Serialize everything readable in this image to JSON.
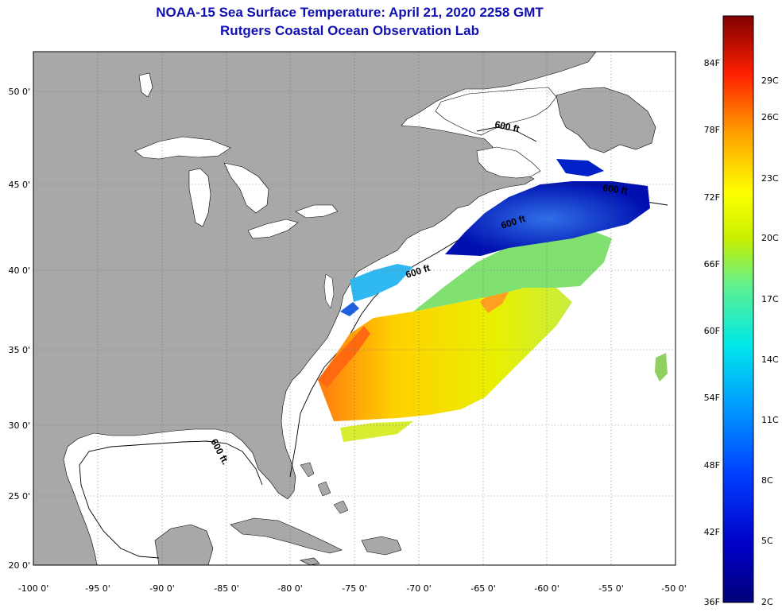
{
  "header": {
    "title": "NOAA-15 Sea Surface Temperature:  April 21, 2020 2258 GMT",
    "subtitle": "Rutgers Coastal Ocean Observation Lab"
  },
  "axes": {
    "lat_labels": [
      "50 0'",
      "45 0'",
      "40 0'",
      "35 0'",
      "30 0'",
      "25 0'",
      "20 0'"
    ],
    "lon_labels": [
      "-100 0'",
      "-95 0'",
      "-90 0'",
      "-85 0'",
      "-80 0'",
      "-75 0'",
      "-70 0'",
      "-65 0'",
      "-60 0'",
      "-55 0'",
      "-50 0'"
    ]
  },
  "isobath": {
    "label": "600 ft",
    "label_alt": "600 ft."
  },
  "colorbar": {
    "fahrenheit": [
      "84F",
      "78F",
      "72F",
      "66F",
      "60F",
      "54F",
      "48F",
      "42F",
      "36F"
    ],
    "celsius": [
      "29C",
      "26C",
      "23C",
      "20C",
      "17C",
      "14C",
      "11C",
      "8C",
      "5C",
      "2C"
    ]
  },
  "colors": {
    "land": "#a8a8a8",
    "title": "#1010b0",
    "ocean": "#ffffff"
  }
}
